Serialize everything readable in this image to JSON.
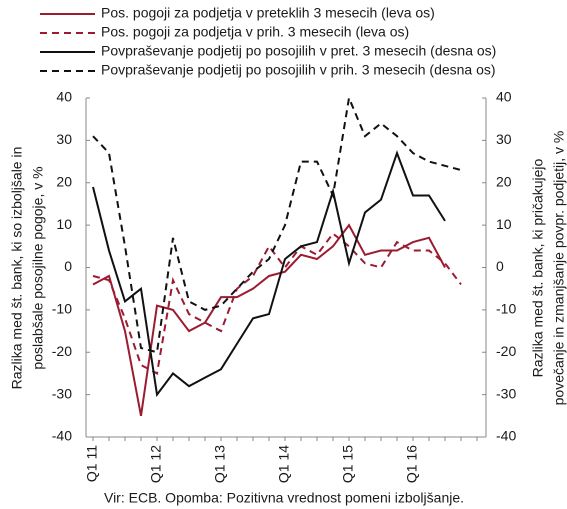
{
  "chart_data": {
    "type": "line",
    "categories": [
      "Q1 11",
      null,
      null,
      null,
      "Q1 12",
      null,
      null,
      null,
      "Q1 13",
      null,
      null,
      null,
      "Q1 14",
      null,
      null,
      null,
      "Q1 15",
      null,
      null,
      null,
      "Q1 16",
      null,
      null,
      null,
      null
    ],
    "series": [
      {
        "name": "Pos. pogoji za podjetja v preteklih 3 mesecih (leva os)",
        "color": "#9b1b30",
        "dash": false,
        "axis": "y",
        "values": [
          -4,
          -2,
          -15,
          -35,
          -9,
          -10,
          -15,
          -13,
          -7,
          -7,
          -5,
          -2,
          -1,
          3,
          2,
          5,
          10,
          3,
          4,
          4,
          6,
          7,
          0,
          null,
          null
        ]
      },
      {
        "name": "Pos. pogoji za podjetja v prih. 3 mesecih (leva os)",
        "color": "#9b1b30",
        "dash": true,
        "axis": "y",
        "values": [
          -2,
          -3,
          -12,
          -23,
          -25,
          -3,
          -11,
          -13,
          -15,
          -5,
          -2,
          5,
          0,
          5,
          3,
          8,
          5,
          1,
          0,
          6,
          4,
          4,
          1,
          -4,
          null
        ]
      },
      {
        "name": "Povpraševanje podjetij po posojilih v pret. 3 mesecih (desna os)",
        "color": "#111111",
        "dash": false,
        "axis": "y2",
        "values": [
          19,
          4,
          -8,
          -5,
          -30,
          -25,
          -28,
          -26,
          -24,
          -18,
          -12,
          -11,
          2,
          5,
          6,
          18,
          1,
          13,
          16,
          27,
          17,
          17,
          11,
          null,
          null
        ]
      },
      {
        "name": "Povpraševanje podjetij po posojilih v prih. 3 mesecih (desna os)",
        "color": "#111111",
        "dash": true,
        "axis": "y2",
        "values": [
          31,
          27,
          5,
          -19,
          -20,
          7,
          -8,
          -10,
          -9,
          -5,
          -1,
          2,
          10,
          25,
          25,
          17,
          40,
          31,
          34,
          31,
          27,
          25,
          24,
          23,
          null
        ]
      }
    ],
    "ylim": [
      -40,
      40
    ],
    "yticks": [
      -40,
      -30,
      -20,
      -10,
      0,
      10,
      20,
      30,
      40
    ],
    "y2lim": [
      -40,
      40
    ],
    "y2ticks": [
      -40,
      -30,
      -20,
      -10,
      0,
      10,
      20,
      30,
      40
    ],
    "ylabel": [
      "Razlika med št. bank, ki so izboljšale in",
      "poslabšale posojilne pogoje, v %"
    ],
    "y2label": [
      "Razlika med št. bank, ki pričakujejo",
      "povečanje in zmanjšanje povpr. podjetij, v %"
    ],
    "source": "Vir: ECB. Opomba: Pozitivna vrednost pomeni izboljšanje."
  }
}
